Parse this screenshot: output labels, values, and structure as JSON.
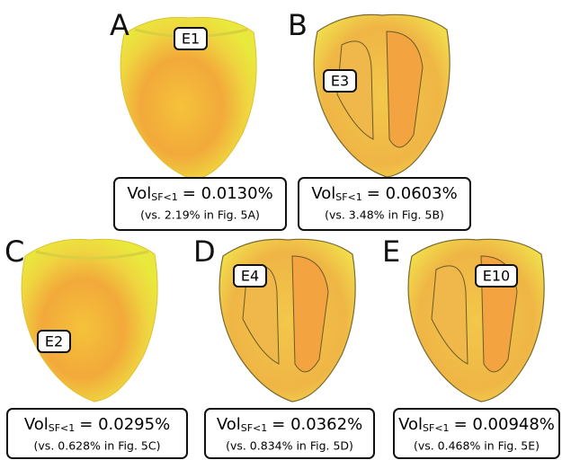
{
  "panels": [
    {
      "letter": "A",
      "label": "E1",
      "vol": "Vol",
      "subscript": "SF<1",
      "value": "= 0.0130%",
      "comparison": "(vs. 2.19% in Fig. 5A)"
    },
    {
      "letter": "B",
      "label": "E3",
      "vol": "Vol",
      "subscript": "SF<1",
      "value": "= 0.0603%",
      "comparison": "(vs. 3.48% in Fig. 5B)"
    },
    {
      "letter": "C",
      "label": "E2",
      "vol": "Vol",
      "subscript": "SF<1",
      "value": "= 0.0295%",
      "comparison": "(vs. 0.628% in Fig. 5C)"
    },
    {
      "letter": "D",
      "label": "E4",
      "vol": "Vol",
      "subscript": "SF<1",
      "value": "= 0.0362%",
      "comparison": "(vs. 0.834% in Fig. 5D)"
    },
    {
      "letter": "E",
      "label": "E10",
      "vol": "Vol",
      "subscript": "SF<1",
      "value": "= 0.00948%",
      "comparison": "(vs. 0.468% in Fig. 5E)"
    }
  ]
}
